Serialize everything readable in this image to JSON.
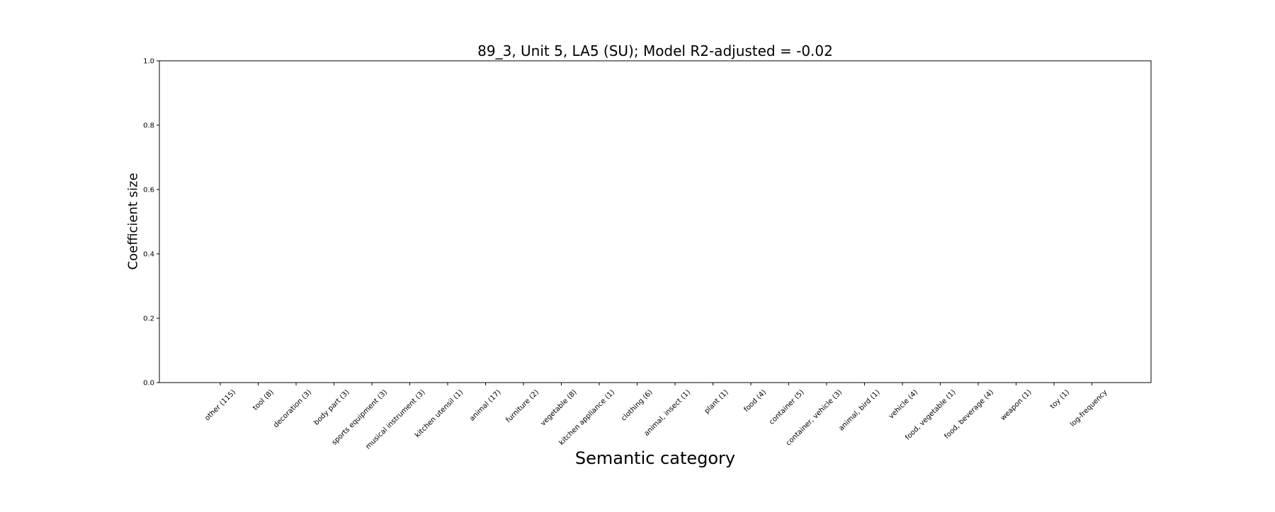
{
  "chart_data": {
    "type": "bar",
    "title": "89_3, Unit 5, LA5 (SU); Model R2-adjusted = -0.02",
    "xlabel": "Semantic category",
    "ylabel": "Coefficient size",
    "ylim": [
      0.0,
      1.0
    ],
    "yticks": [
      "0.0",
      "0.2",
      "0.4",
      "0.6",
      "0.8",
      "1.0"
    ],
    "categories": [
      "other (115)",
      "tool (8)",
      "decoration (3)",
      "body part (3)",
      "sports equipment (3)",
      "musical instrument (3)",
      "kitchen utensil (1)",
      "animal (17)",
      "furniture (2)",
      "vegetable (8)",
      "kitchen appliance (1)",
      "clothing (6)",
      "animal, insect (1)",
      "plant (1)",
      "food (4)",
      "container (5)",
      "container, vehicle (3)",
      "animal, bird (1)",
      "vehicle (4)",
      "food, vegetable (1)",
      "food, beverage (4)",
      "weapon (1)",
      "toy (1)",
      "log-frequency"
    ],
    "values": [
      null,
      null,
      null,
      null,
      null,
      null,
      null,
      null,
      null,
      null,
      null,
      null,
      null,
      null,
      null,
      null,
      null,
      null,
      null,
      null,
      null,
      null,
      null,
      null
    ],
    "grid": false,
    "legend": "none"
  }
}
